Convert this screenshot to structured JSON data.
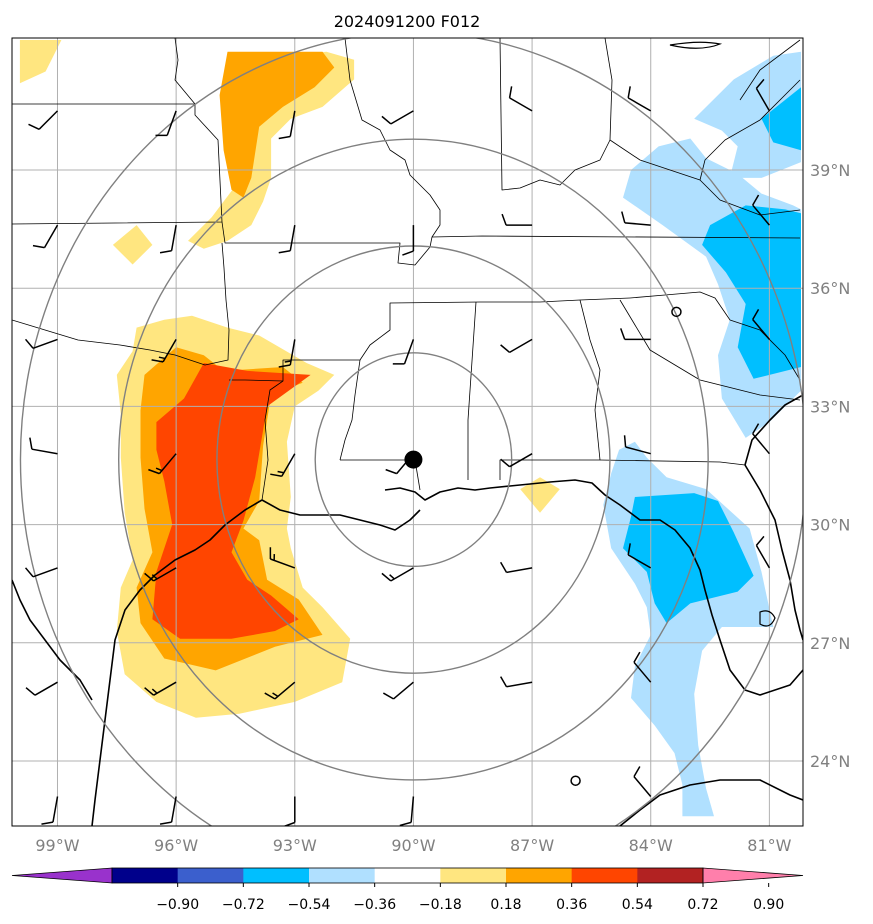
{
  "figure": {
    "title": "2024091200 F012"
  },
  "map": {
    "extent": {
      "lon_min": -100.15,
      "lon_max": -80.15,
      "lat_min": 22.35,
      "lat_max": 42.35
    },
    "lon_ticks": [
      {
        "value": -99,
        "label": "99°W"
      },
      {
        "value": -96,
        "label": "96°W"
      },
      {
        "value": -93,
        "label": "93°W"
      },
      {
        "value": -90,
        "label": "90°W"
      },
      {
        "value": -87,
        "label": "87°W"
      },
      {
        "value": -84,
        "label": "84°W"
      },
      {
        "value": -81,
        "label": "81°W"
      }
    ],
    "lat_ticks": [
      {
        "value": 39,
        "label": "39°N"
      },
      {
        "value": 36,
        "label": "36°N"
      },
      {
        "value": 33,
        "label": "33°N"
      },
      {
        "value": 30,
        "label": "30°N"
      },
      {
        "value": 27,
        "label": "27°N"
      },
      {
        "value": 24,
        "label": "24°N"
      }
    ],
    "center_marker": {
      "lon": -90.0,
      "lat": 31.65
    },
    "range_rings_deg": [
      2.7,
      5.4,
      8.1,
      10.8
    ],
    "small_circles": [
      {
        "lon": -83.35,
        "lat": 35.4
      },
      {
        "lon": -85.9,
        "lat": 23.5
      }
    ]
  },
  "colorbar": {
    "levels": [
      "−0.90",
      "−0.72",
      "−0.54",
      "−0.36",
      "−0.18",
      "0.18",
      "0.36",
      "0.54",
      "0.72",
      "0.90"
    ],
    "colors": [
      "#9932cc",
      "#00008b",
      "#3b5fcd",
      "#00bfff",
      "#b0e0ff",
      "#ffffff",
      "#ffe680",
      "#ffa500",
      "#ff4500",
      "#b22222",
      "#ff7fab"
    ],
    "extend": "both"
  },
  "colors": {
    "grid": "#b0b0b0",
    "rings": "#808080",
    "coast": "#000000",
    "light_pos": "#ffe680",
    "mid_pos": "#ffa500",
    "light_neg": "#b0e0ff",
    "mid_neg": "#00bfff"
  },
  "wind_barbs": [
    {
      "lon": -99,
      "lat": 40.5,
      "dir": 225,
      "kt": 10
    },
    {
      "lon": -96,
      "lat": 40.5,
      "dir": 200,
      "kt": 10
    },
    {
      "lon": -93,
      "lat": 40.5,
      "dir": 190,
      "kt": 10
    },
    {
      "lon": -90,
      "lat": 40.5,
      "dir": 240,
      "kt": 10
    },
    {
      "lon": -87,
      "lat": 40.5,
      "dir": 300,
      "kt": 10
    },
    {
      "lon": -84,
      "lat": 40.5,
      "dir": 300,
      "kt": 10
    },
    {
      "lon": -81,
      "lat": 40.5,
      "dir": 330,
      "kt": 10
    },
    {
      "lon": -99,
      "lat": 37.6,
      "dir": 210,
      "kt": 10
    },
    {
      "lon": -96,
      "lat": 37.6,
      "dir": 190,
      "kt": 10
    },
    {
      "lon": -93,
      "lat": 37.6,
      "dir": 190,
      "kt": 10
    },
    {
      "lon": -90,
      "lat": 37.6,
      "dir": 180,
      "kt": 10
    },
    {
      "lon": -87,
      "lat": 37.6,
      "dir": 270,
      "kt": 10
    },
    {
      "lon": -84,
      "lat": 37.6,
      "dir": 275,
      "kt": 10
    },
    {
      "lon": -81,
      "lat": 37.6,
      "dir": 320,
      "kt": 10
    },
    {
      "lon": -99,
      "lat": 34.7,
      "dir": 250,
      "kt": 10
    },
    {
      "lon": -96,
      "lat": 34.7,
      "dir": 210,
      "kt": 15
    },
    {
      "lon": -93,
      "lat": 34.7,
      "dir": 190,
      "kt": 15
    },
    {
      "lon": -90,
      "lat": 34.7,
      "dir": 200,
      "kt": 10
    },
    {
      "lon": -87,
      "lat": 34.7,
      "dir": 240,
      "kt": 10
    },
    {
      "lon": -84,
      "lat": 34.7,
      "dir": 270,
      "kt": 10
    },
    {
      "lon": -81,
      "lat": 34.7,
      "dir": 320,
      "kt": 10
    },
    {
      "lon": -99,
      "lat": 31.8,
      "dir": 280,
      "kt": 10
    },
    {
      "lon": -96,
      "lat": 31.8,
      "dir": 220,
      "kt": 15
    },
    {
      "lon": -93,
      "lat": 31.8,
      "dir": 210,
      "kt": 15
    },
    {
      "lon": -90,
      "lat": 31.8,
      "dir": 220,
      "kt": 10
    },
    {
      "lon": -87,
      "lat": 31.8,
      "dir": 240,
      "kt": 10
    },
    {
      "lon": -84,
      "lat": 31.8,
      "dir": 285,
      "kt": 10
    },
    {
      "lon": -81,
      "lat": 31.8,
      "dir": 320,
      "kt": 10
    },
    {
      "lon": -99,
      "lat": 28.9,
      "dir": 250,
      "kt": 10
    },
    {
      "lon": -96,
      "lat": 28.9,
      "dir": 240,
      "kt": 15
    },
    {
      "lon": -93,
      "lat": 28.9,
      "dir": 290,
      "kt": 15
    },
    {
      "lon": -90,
      "lat": 28.9,
      "dir": 240,
      "kt": 15
    },
    {
      "lon": -87,
      "lat": 28.9,
      "dir": 260,
      "kt": 10
    },
    {
      "lon": -84,
      "lat": 28.9,
      "dir": 300,
      "kt": 10
    },
    {
      "lon": -81,
      "lat": 28.9,
      "dir": 330,
      "kt": 10
    },
    {
      "lon": -99,
      "lat": 26.0,
      "dir": 240,
      "kt": 10
    },
    {
      "lon": -96,
      "lat": 26.0,
      "dir": 240,
      "kt": 15
    },
    {
      "lon": -93,
      "lat": 26.0,
      "dir": 230,
      "kt": 15
    },
    {
      "lon": -90,
      "lat": 26.0,
      "dir": 230,
      "kt": 10
    },
    {
      "lon": -87,
      "lat": 26.0,
      "dir": 260,
      "kt": 10
    },
    {
      "lon": -84,
      "lat": 26.0,
      "dir": 320,
      "kt": 10
    },
    {
      "lon": -99,
      "lat": 23.1,
      "dir": 190,
      "kt": 10
    },
    {
      "lon": -96,
      "lat": 23.1,
      "dir": 190,
      "kt": 10
    },
    {
      "lon": -93,
      "lat": 23.1,
      "dir": 180,
      "kt": 10
    },
    {
      "lon": -90,
      "lat": 23.1,
      "dir": 185,
      "kt": 10
    },
    {
      "lon": -84,
      "lat": 23.1,
      "dir": 320,
      "kt": 10
    }
  ],
  "regions": [
    {
      "level": "0.18",
      "lonlat": [
        [
          -95.7,
          37.2
        ],
        [
          -95.1,
          37.8
        ],
        [
          -94.5,
          38.6
        ],
        [
          -94.2,
          39.6
        ],
        [
          -94.1,
          40.8
        ],
        [
          -93.8,
          41.6
        ],
        [
          -93.3,
          41.9
        ],
        [
          -92.2,
          42.0
        ],
        [
          -91.5,
          41.8
        ],
        [
          -91.5,
          41.3
        ],
        [
          -92.3,
          40.6
        ],
        [
          -93.1,
          40.3
        ],
        [
          -93.6,
          39.8
        ],
        [
          -93.6,
          38.8
        ],
        [
          -93.8,
          38.2
        ],
        [
          -94.1,
          37.6
        ],
        [
          -94.7,
          37.2
        ],
        [
          -95.3,
          37.0
        ]
      ]
    },
    {
      "level": "0.36",
      "lonlat": [
        [
          -94.7,
          42.0
        ],
        [
          -94.9,
          40.9
        ],
        [
          -94.8,
          39.5
        ],
        [
          -94.6,
          38.5
        ],
        [
          -94.3,
          38.3
        ],
        [
          -94.1,
          38.8
        ],
        [
          -93.9,
          40.1
        ],
        [
          -93.3,
          40.6
        ],
        [
          -92.5,
          41.1
        ],
        [
          -92.0,
          41.6
        ],
        [
          -92.3,
          42.0
        ]
      ]
    },
    {
      "level": "0.18",
      "lonlat": [
        [
          -99.95,
          42.3
        ],
        [
          -98.9,
          42.3
        ],
        [
          -99.3,
          41.5
        ],
        [
          -99.95,
          41.2
        ]
      ]
    },
    {
      "level": "0.18",
      "lonlat": [
        [
          -97.6,
          37.1
        ],
        [
          -97.0,
          37.6
        ],
        [
          -96.6,
          37.1
        ],
        [
          -97.1,
          36.6
        ]
      ]
    },
    {
      "level": "0.18",
      "lonlat": [
        [
          -97.0,
          35.0
        ],
        [
          -96.3,
          35.2
        ],
        [
          -95.6,
          35.3
        ],
        [
          -94.7,
          35.0
        ],
        [
          -93.9,
          34.8
        ],
        [
          -92.7,
          34.1
        ],
        [
          -92.0,
          33.8
        ],
        [
          -92.4,
          33.4
        ],
        [
          -93.0,
          33.0
        ],
        [
          -93.2,
          32.1
        ],
        [
          -93.1,
          30.7
        ],
        [
          -93.2,
          29.9
        ],
        [
          -93.1,
          29.4
        ],
        [
          -92.8,
          28.4
        ],
        [
          -92.3,
          27.9
        ],
        [
          -91.6,
          27.1
        ],
        [
          -91.8,
          26.0
        ],
        [
          -93.0,
          25.5
        ],
        [
          -94.4,
          25.2
        ],
        [
          -95.5,
          25.1
        ],
        [
          -96.5,
          25.5
        ],
        [
          -97.3,
          26.2
        ],
        [
          -97.5,
          27.3
        ],
        [
          -97.4,
          28.4
        ],
        [
          -97.1,
          29.1
        ],
        [
          -97.3,
          30.3
        ],
        [
          -97.4,
          31.7
        ],
        [
          -97.4,
          32.8
        ],
        [
          -97.5,
          33.8
        ],
        [
          -97.1,
          34.4
        ]
      ]
    },
    {
      "level": "0.36",
      "lonlat": [
        [
          -96.0,
          34.5
        ],
        [
          -95.3,
          34.3
        ],
        [
          -94.8,
          33.9
        ],
        [
          -93.3,
          34.0
        ],
        [
          -92.8,
          33.6
        ],
        [
          -93.6,
          33.3
        ],
        [
          -93.8,
          32.0
        ],
        [
          -93.9,
          30.6
        ],
        [
          -94.3,
          29.9
        ],
        [
          -93.9,
          29.6
        ],
        [
          -93.7,
          28.6
        ],
        [
          -92.9,
          28.1
        ],
        [
          -92.3,
          27.2
        ],
        [
          -93.5,
          26.9
        ],
        [
          -95.0,
          26.3
        ],
        [
          -96.3,
          26.6
        ],
        [
          -96.9,
          27.5
        ],
        [
          -97.0,
          28.4
        ],
        [
          -96.6,
          29.3
        ],
        [
          -96.8,
          30.4
        ],
        [
          -96.9,
          31.7
        ],
        [
          -96.9,
          32.9
        ],
        [
          -96.8,
          33.8
        ]
      ]
    },
    {
      "level": "0.54",
      "lonlat": [
        [
          -95.3,
          34.1
        ],
        [
          -94.2,
          33.9
        ],
        [
          -92.6,
          33.8
        ],
        [
          -93.7,
          33.0
        ],
        [
          -94.0,
          31.2
        ],
        [
          -94.3,
          30.1
        ],
        [
          -94.6,
          29.3
        ],
        [
          -94.2,
          28.6
        ],
        [
          -93.6,
          28.2
        ],
        [
          -92.9,
          27.6
        ],
        [
          -93.5,
          27.3
        ],
        [
          -94.6,
          27.1
        ],
        [
          -95.9,
          27.1
        ],
        [
          -96.6,
          27.6
        ],
        [
          -96.5,
          28.8
        ],
        [
          -96.1,
          30.0
        ],
        [
          -96.3,
          31.1
        ],
        [
          -96.5,
          31.9
        ],
        [
          -96.5,
          32.6
        ],
        [
          -95.8,
          33.2
        ]
      ]
    },
    {
      "level": "0.18",
      "lonlat": [
        [
          -87.3,
          30.9
        ],
        [
          -86.8,
          31.2
        ],
        [
          -86.3,
          30.9
        ],
        [
          -86.8,
          30.3
        ]
      ]
    },
    {
      "level": "-0.18",
      "lonlat": [
        [
          -83.8,
          39.6
        ],
        [
          -83.0,
          39.8
        ],
        [
          -82.6,
          39.3
        ],
        [
          -81.8,
          38.9
        ],
        [
          -81.2,
          38.4
        ],
        [
          -80.4,
          38.1
        ],
        [
          -80.2,
          38.0
        ],
        [
          -80.2,
          33.4
        ],
        [
          -81.0,
          32.6
        ],
        [
          -81.6,
          32.2
        ],
        [
          -82.2,
          33.2
        ],
        [
          -82.3,
          34.3
        ],
        [
          -82.0,
          35.2
        ],
        [
          -82.3,
          36.1
        ],
        [
          -82.6,
          36.8
        ],
        [
          -83.7,
          37.6
        ],
        [
          -84.7,
          38.3
        ],
        [
          -84.5,
          39.0
        ]
      ]
    },
    {
      "level": "-0.36",
      "lonlat": [
        [
          -82.5,
          37.6
        ],
        [
          -81.6,
          38.1
        ],
        [
          -80.6,
          38.0
        ],
        [
          -80.2,
          37.9
        ],
        [
          -80.2,
          34.0
        ],
        [
          -81.4,
          33.7
        ],
        [
          -81.8,
          34.5
        ],
        [
          -81.6,
          35.6
        ],
        [
          -82.1,
          36.4
        ],
        [
          -82.7,
          37.1
        ]
      ]
    },
    {
      "level": "-0.18",
      "lonlat": [
        [
          -82.9,
          40.3
        ],
        [
          -81.9,
          41.3
        ],
        [
          -80.9,
          41.9
        ],
        [
          -80.2,
          42.0
        ],
        [
          -80.2,
          39.2
        ],
        [
          -81.2,
          38.8
        ],
        [
          -82.0,
          38.8
        ],
        [
          -81.8,
          39.6
        ],
        [
          -82.2,
          40.0
        ]
      ]
    },
    {
      "level": "-0.36",
      "lonlat": [
        [
          -81.2,
          40.3
        ],
        [
          -80.2,
          41.1
        ],
        [
          -80.2,
          39.5
        ],
        [
          -80.9,
          39.7
        ]
      ]
    },
    {
      "level": "-0.18",
      "lonlat": [
        [
          -84.8,
          31.9
        ],
        [
          -84.4,
          32.1
        ],
        [
          -84.1,
          31.7
        ],
        [
          -83.6,
          31.2
        ],
        [
          -82.6,
          30.9
        ],
        [
          -81.5,
          29.9
        ],
        [
          -81.2,
          28.8
        ],
        [
          -80.9,
          27.4
        ],
        [
          -82.2,
          27.4
        ],
        [
          -82.7,
          26.8
        ],
        [
          -82.9,
          25.7
        ],
        [
          -82.8,
          24.4
        ],
        [
          -82.6,
          23.3
        ],
        [
          -82.4,
          22.6
        ],
        [
          -83.2,
          22.6
        ],
        [
          -83.2,
          23.4
        ],
        [
          -83.4,
          24.2
        ],
        [
          -83.9,
          24.9
        ],
        [
          -84.5,
          25.6
        ],
        [
          -84.4,
          26.4
        ],
        [
          -84.0,
          27.2
        ],
        [
          -84.1,
          27.9
        ],
        [
          -84.4,
          28.5
        ],
        [
          -85.0,
          29.4
        ],
        [
          -85.2,
          30.5
        ],
        [
          -85.0,
          31.3
        ]
      ]
    },
    {
      "level": "-0.36",
      "lonlat": [
        [
          -84.4,
          30.7
        ],
        [
          -82.9,
          30.8
        ],
        [
          -82.3,
          30.6
        ],
        [
          -81.9,
          29.8
        ],
        [
          -81.4,
          28.7
        ],
        [
          -81.8,
          28.3
        ],
        [
          -83.0,
          28.0
        ],
        [
          -83.6,
          27.5
        ],
        [
          -83.9,
          28.0
        ],
        [
          -84.1,
          28.8
        ],
        [
          -84.7,
          29.4
        ],
        [
          -84.5,
          30.2
        ]
      ]
    }
  ]
}
